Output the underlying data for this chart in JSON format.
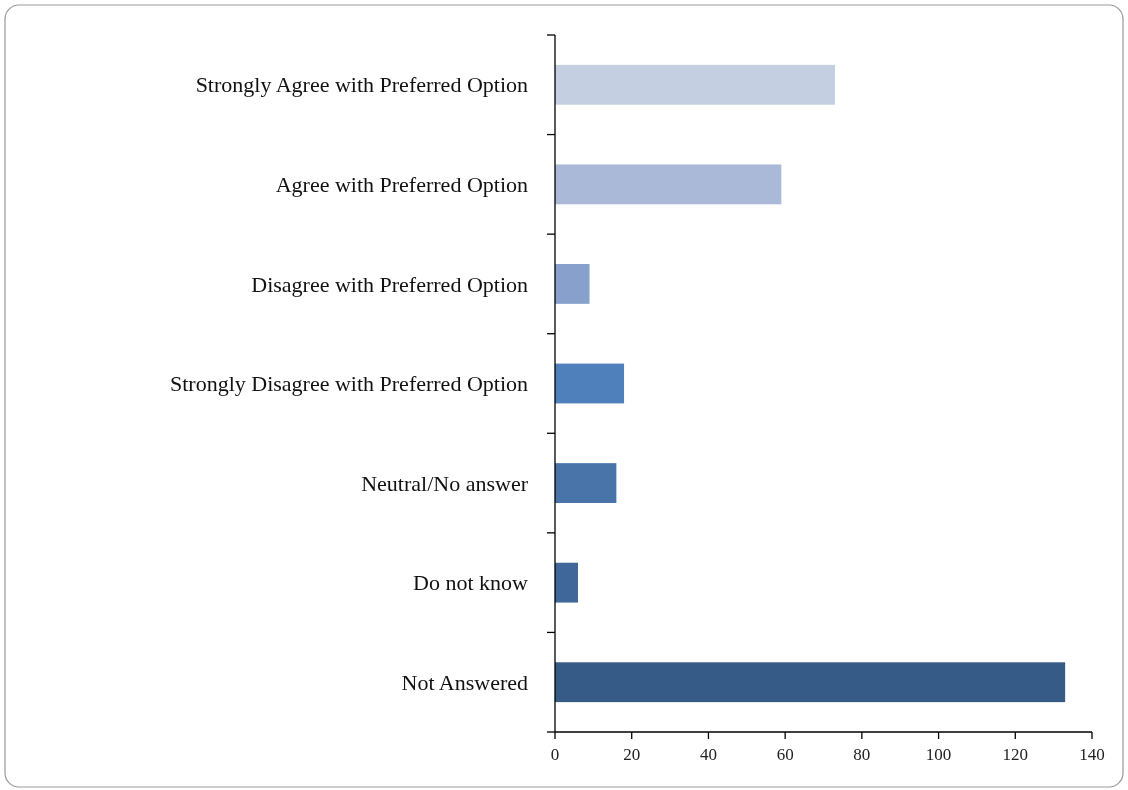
{
  "chart_data": {
    "type": "bar",
    "orientation": "horizontal",
    "categories": [
      "Strongly Agree with Preferred Option",
      "Agree with Preferred Option",
      "Disagree with Preferred Option",
      "Strongly Disagree with Preferred Option",
      "Neutral/No answer",
      "Do not know",
      "Not Answered"
    ],
    "values": [
      73,
      59,
      9,
      18,
      16,
      6,
      133
    ],
    "colors": [
      "#c4cfe1",
      "#aab9d8",
      "#87a1cc",
      "#4f80bc",
      "#4874aa",
      "#406799",
      "#365b87"
    ],
    "xlim": [
      0,
      140
    ],
    "xticks": [
      0,
      20,
      40,
      60,
      80,
      100,
      120,
      140
    ],
    "grid": false
  }
}
